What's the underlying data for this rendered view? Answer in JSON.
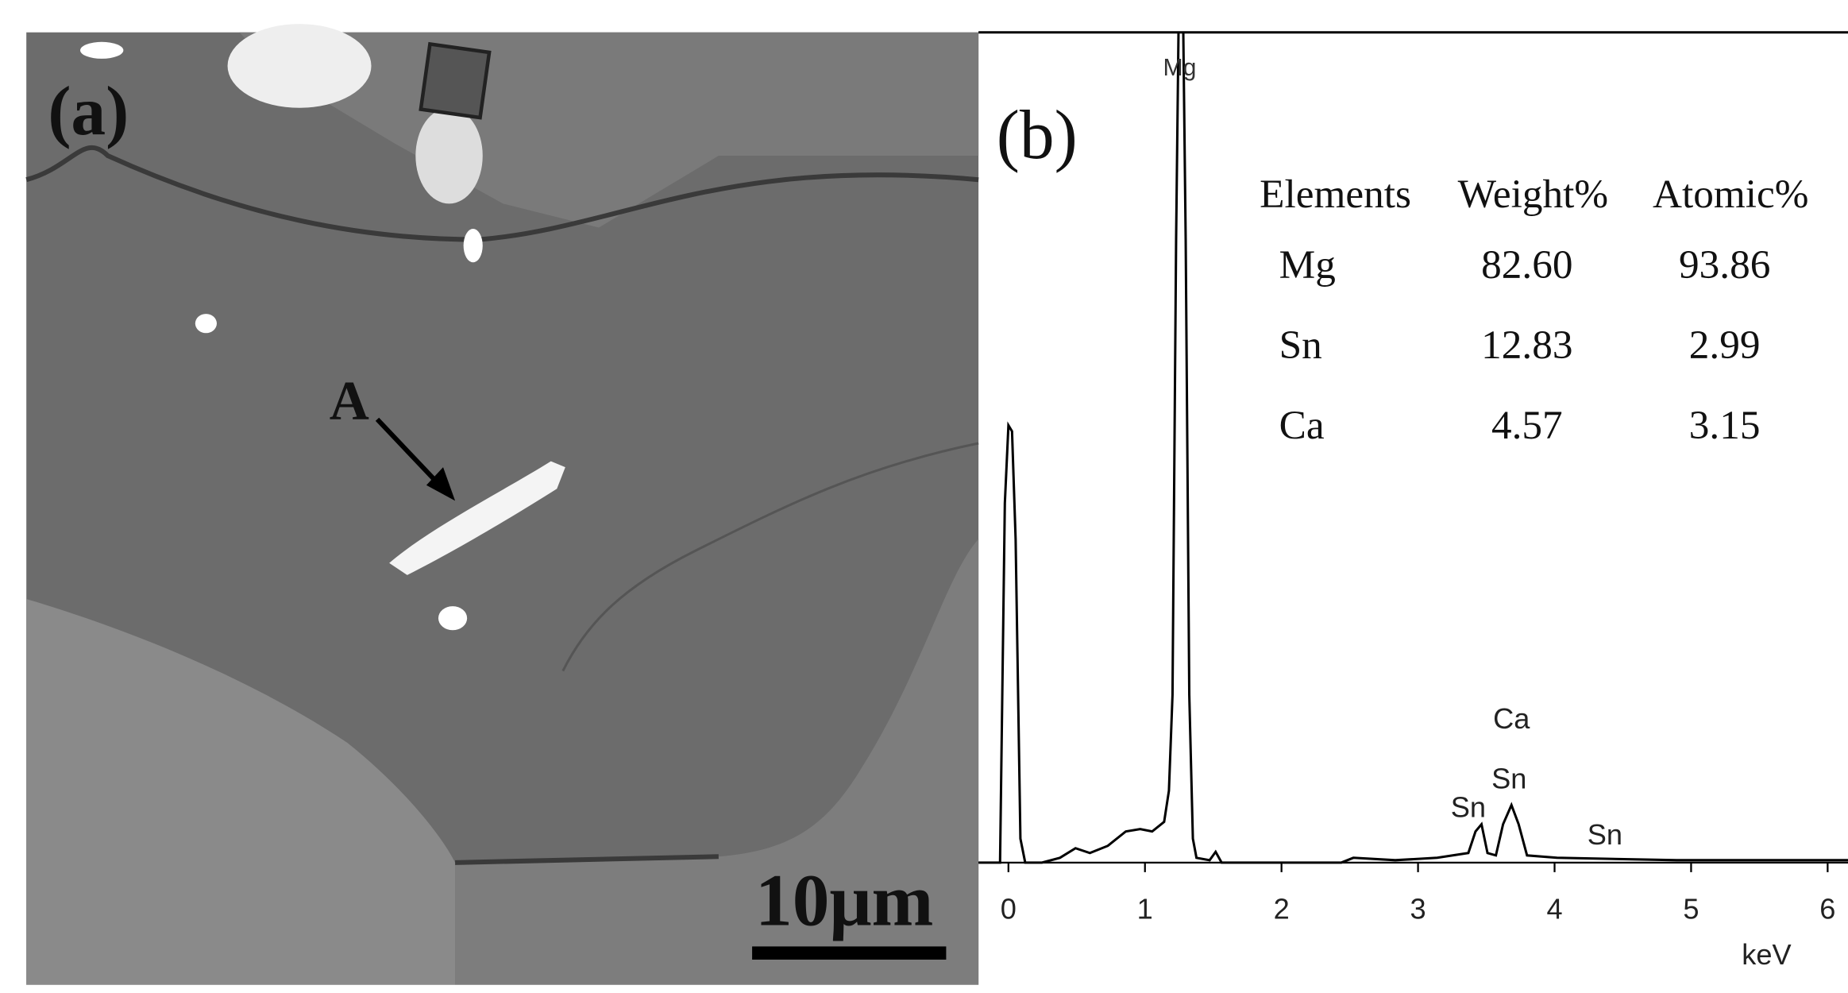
{
  "panel_a": {
    "label": "(a)",
    "marker": "A",
    "scale_bar": "10μm"
  },
  "panel_b": {
    "label": "(b)",
    "peak_labels": [
      "Mg",
      "Ca",
      "Sn",
      "Sn",
      "Sn"
    ],
    "x_label": "keV",
    "xticks": [
      0,
      1,
      2,
      3,
      4,
      5,
      6
    ],
    "table": {
      "header": [
        "Elements",
        "Weight%",
        "Atomic%"
      ],
      "rows": [
        [
          "Mg",
          "82.60",
          "93.86"
        ],
        [
          "Sn",
          "12.83",
          "2.99"
        ],
        [
          "Ca",
          "4.57",
          "3.15"
        ]
      ]
    }
  }
}
